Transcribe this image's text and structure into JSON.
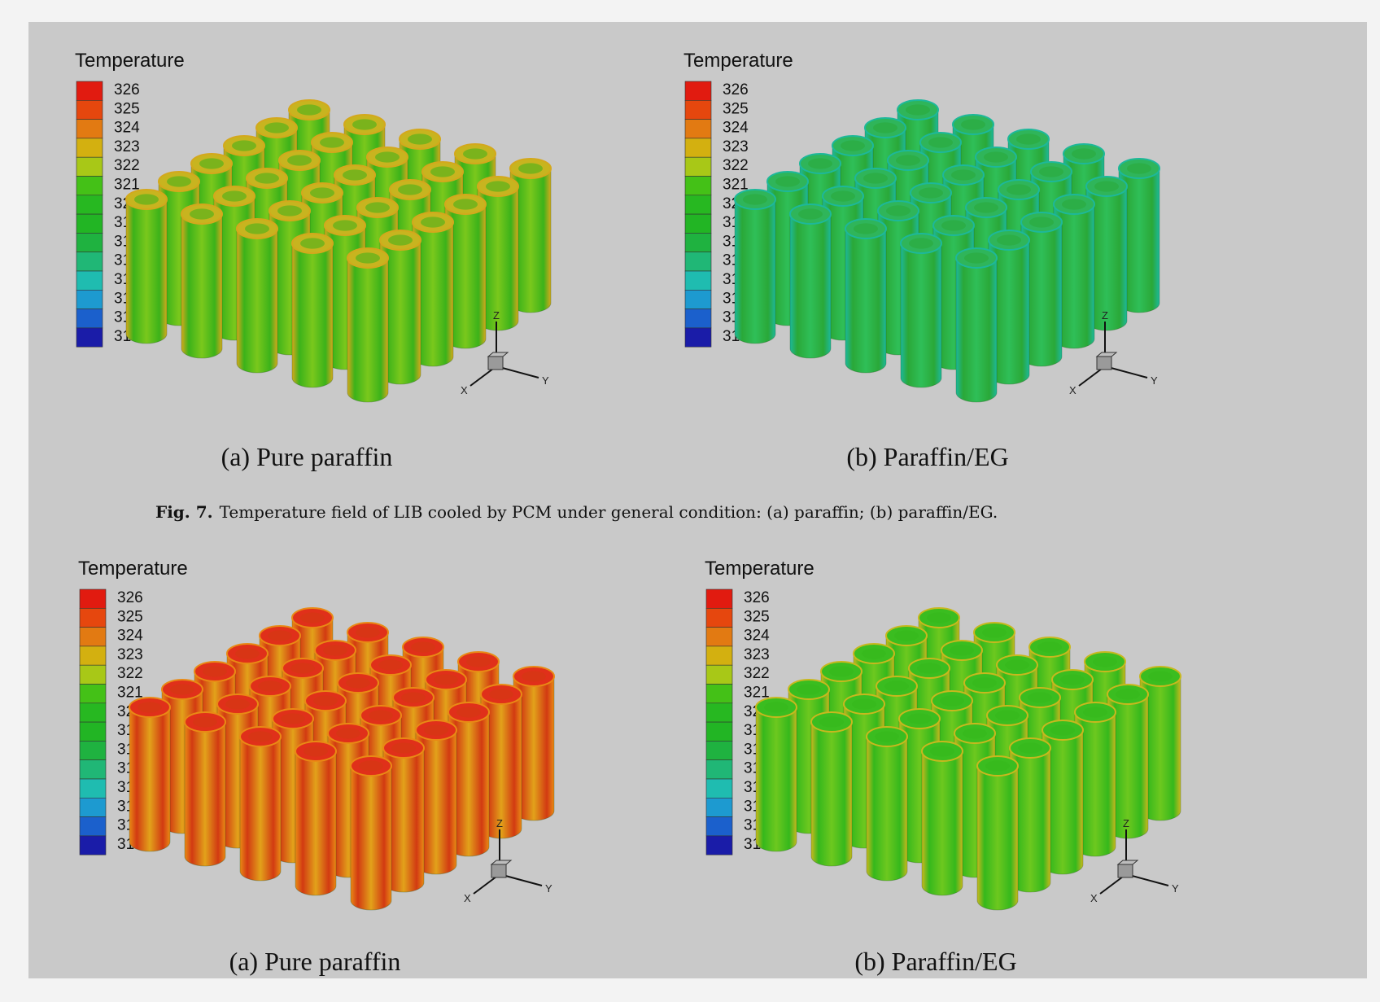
{
  "figure_caption": {
    "label": "Fig. 7.",
    "text": "Temperature field of LIB cooled by PCM under general condition: (a) paraffin; (b) paraffin/EG."
  },
  "legend": {
    "title": "Temperature",
    "levels": [
      "326",
      "325",
      "324",
      "323",
      "322",
      "321",
      "320",
      "319",
      "318",
      "317",
      "316",
      "315",
      "314",
      "313"
    ],
    "colors": [
      "#e11b10",
      "#e6470e",
      "#e27a12",
      "#d3b010",
      "#a8c817",
      "#44c117",
      "#27b821",
      "#22b524",
      "#1fb240",
      "#20b776",
      "#1fbcb0",
      "#1d9ad0",
      "#1b60cc",
      "#1a1ca8"
    ]
  },
  "axes": {
    "x": "X",
    "y": "Y",
    "z": "Z"
  },
  "panels": [
    {
      "caption": "(a) Pure paraffin",
      "body_color": "#3bb21a",
      "side_color": "#d4a81c",
      "cap_color": "#c8b41f",
      "highlight": "#7ac81c"
    },
    {
      "caption": "(b) Paraffin/EG",
      "body_color": "#2aa838",
      "side_color": "#1db89a",
      "cap_color": "#2fb55a",
      "highlight": "#2fbf58"
    },
    {
      "caption": "(a) Pure paraffin",
      "body_color": "#d23a12",
      "side_color": "#e98a15",
      "cap_color": "#e0301a",
      "highlight": "#e2a21a"
    },
    {
      "caption": "(b) Paraffin/EG",
      "body_color": "#35b81c",
      "side_color": "#c8b81e",
      "cap_color": "#3abd20",
      "highlight": "#6dc81f"
    }
  ]
}
